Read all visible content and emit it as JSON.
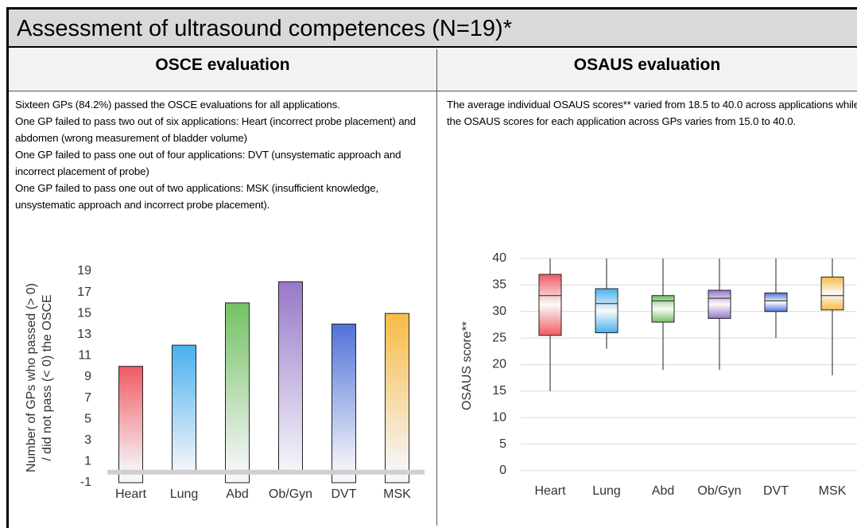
{
  "title": "Assessment of ultrasound competences (N=19)*",
  "panels": [
    {
      "heading": "OSCE evaluation",
      "paragraphs": [
        "Sixteen GPs (84.2%) passed the OSCE evaluations for all applications.",
        "One GP failed to pass two out of six applications: Heart (incorrect probe placement) and abdomen (wrong measurement of bladder volume)",
        "One GP failed to pass one out of four applications: DVT (unsystematic approach and incorrect placement of probe)",
        "One GP failed to pass one out of two applications: MSK (insufficient knowledge, unsystematic approach and incorrect probe placement)."
      ]
    },
    {
      "heading": "OSAUS evaluation",
      "paragraphs": [
        "The average individual OSAUS scores** varied from 18.5 to 40.0 across applications while the OSAUS scores for each application across GPs varies from 15.0 to 40.0."
      ]
    }
  ],
  "chart_data": [
    {
      "type": "bar",
      "ylabel": [
        "Number of GPs who passed (> 0)",
        "/ did not pass (< 0) the OSCE"
      ],
      "categories": [
        "Heart",
        "Lung",
        "Abd",
        "Ob/Gyn",
        "DVT",
        "MSK"
      ],
      "values": [
        10,
        12,
        16,
        18,
        14,
        15
      ],
      "values_below": [
        -1,
        0,
        -1,
        0,
        -1,
        -1
      ],
      "colors": [
        "#f05a62",
        "#48b0ee",
        "#74c163",
        "#9878c9",
        "#4f72d6",
        "#f8bb45"
      ],
      "ylim": [
        -1,
        19
      ],
      "yticks": [
        -1,
        1,
        3,
        5,
        7,
        9,
        11,
        13,
        15,
        17,
        19
      ]
    },
    {
      "type": "box",
      "ylabel": "OSAUS score**",
      "categories": [
        "Heart",
        "Lung",
        "Abd",
        "Ob/Gyn",
        "DVT",
        "MSK"
      ],
      "min": [
        15,
        23,
        19,
        19,
        25,
        18
      ],
      "q1": [
        25.5,
        26,
        28,
        28.7,
        30,
        30.3
      ],
      "median": [
        33,
        31.5,
        32,
        32.5,
        32,
        33
      ],
      "q3": [
        37,
        34.3,
        33,
        34,
        33.5,
        36.5
      ],
      "max": [
        40,
        40,
        40,
        40,
        40,
        40
      ],
      "colors": [
        "#f05a62",
        "#48b0ee",
        "#74c163",
        "#9878c9",
        "#4f72d6",
        "#f8bb45"
      ],
      "ylim": [
        0,
        40
      ],
      "yticks": [
        0,
        5,
        10,
        15,
        20,
        25,
        30,
        35,
        40
      ],
      "grid": true
    }
  ]
}
